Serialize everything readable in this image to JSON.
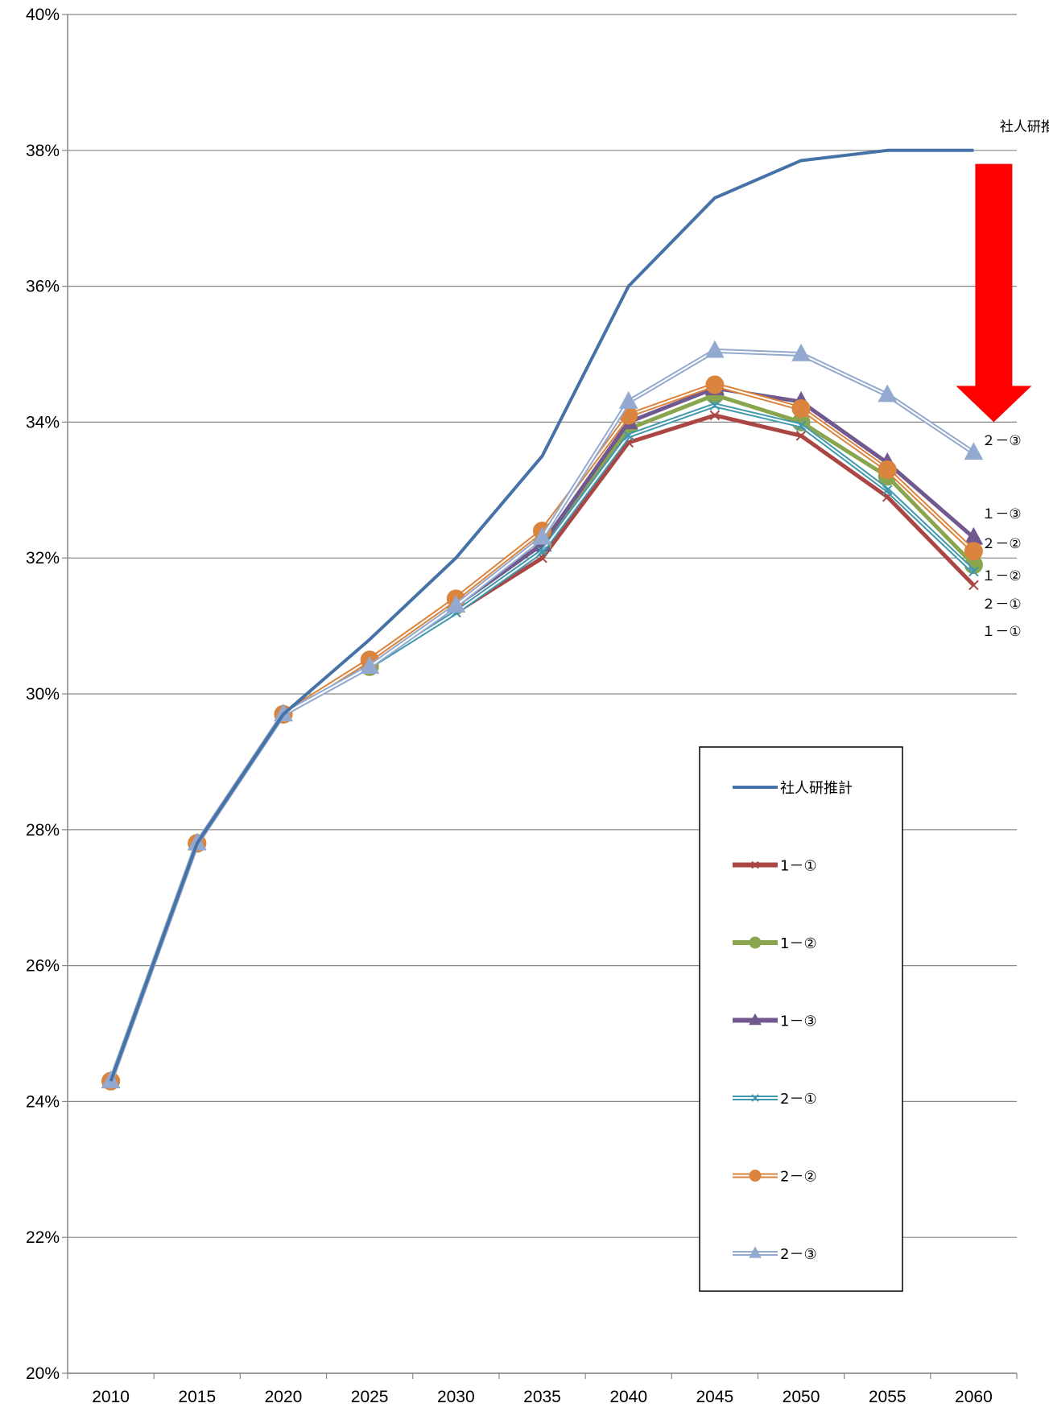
{
  "chart_data": {
    "type": "line",
    "title": "",
    "xlabel": "",
    "ylabel": "",
    "x": [
      2010,
      2015,
      2020,
      2025,
      2030,
      2035,
      2040,
      2045,
      2050,
      2055,
      2060
    ],
    "ylim": [
      20,
      40
    ],
    "ytick_step": 2,
    "y_unit": "%",
    "grid": "horizontal",
    "legend_position": "right-center",
    "series": [
      {
        "name": "社人研推計",
        "color": "#4572A7",
        "marker": "none",
        "style": "solid",
        "values": [
          24.3,
          27.8,
          29.7,
          30.8,
          32.0,
          33.5,
          36.0,
          37.3,
          37.85,
          38.0,
          38.0
        ]
      },
      {
        "name": "1－①",
        "color": "#AA4643",
        "marker": "x",
        "style": "solid",
        "values": [
          24.3,
          27.8,
          29.7,
          30.4,
          31.2,
          32.0,
          33.7,
          34.1,
          33.8,
          32.9,
          31.6
        ]
      },
      {
        "name": "1－②",
        "color": "#89A54E",
        "marker": "circle",
        "style": "solid",
        "values": [
          24.3,
          27.8,
          29.7,
          30.4,
          31.3,
          32.2,
          33.9,
          34.4,
          34.0,
          33.2,
          31.9
        ]
      },
      {
        "name": "1－③",
        "color": "#71588F",
        "marker": "triangle",
        "style": "solid",
        "values": [
          24.3,
          27.8,
          29.7,
          30.4,
          31.3,
          32.2,
          34.0,
          34.5,
          34.3,
          33.4,
          32.3
        ]
      },
      {
        "name": "2－①",
        "color": "#4198AF",
        "marker": "x",
        "style": "double",
        "values": [
          24.3,
          27.8,
          29.7,
          30.4,
          31.2,
          32.1,
          33.8,
          34.25,
          33.95,
          33.0,
          31.8
        ]
      },
      {
        "name": "2－②",
        "color": "#DB843D",
        "marker": "circle",
        "style": "double",
        "values": [
          24.3,
          27.8,
          29.7,
          30.5,
          31.4,
          32.4,
          34.1,
          34.55,
          34.2,
          33.3,
          32.1
        ]
      },
      {
        "name": "2－③",
        "color": "#93A9CF",
        "marker": "triangle",
        "style": "double",
        "values": [
          24.3,
          27.8,
          29.7,
          30.4,
          31.3,
          32.3,
          34.3,
          35.05,
          35.0,
          34.4,
          33.55
        ]
      }
    ],
    "end_labels": [
      {
        "text": "社人研推計",
        "series": "社人研推計"
      },
      {
        "text": "２－③",
        "series": "2－③"
      },
      {
        "text": "１－③",
        "series": "1－③"
      },
      {
        "text": "２－②",
        "series": "2－②"
      },
      {
        "text": "１－②",
        "series": "1－②"
      },
      {
        "text": "２－①",
        "series": "2－①"
      },
      {
        "text": "１－①",
        "series": "1－①"
      }
    ],
    "arrow": {
      "color": "#FF0000",
      "direction": "down",
      "from_value": 37.8,
      "to_value": 34.0
    }
  }
}
